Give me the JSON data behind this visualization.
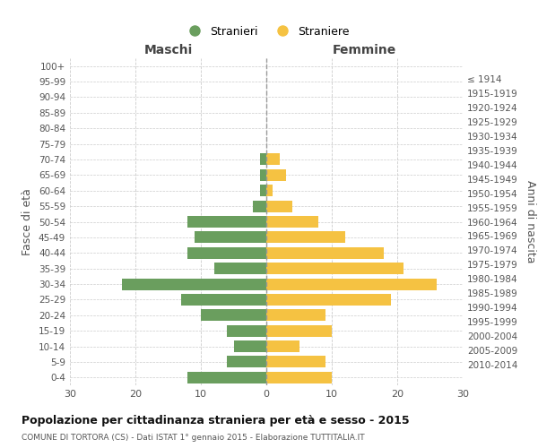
{
  "age_groups": [
    "100+",
    "95-99",
    "90-94",
    "85-89",
    "80-84",
    "75-79",
    "70-74",
    "65-69",
    "60-64",
    "55-59",
    "50-54",
    "45-49",
    "40-44",
    "35-39",
    "30-34",
    "25-29",
    "20-24",
    "15-19",
    "10-14",
    "5-9",
    "0-4"
  ],
  "birth_years": [
    "≤ 1914",
    "1915-1919",
    "1920-1924",
    "1925-1929",
    "1930-1934",
    "1935-1939",
    "1940-1944",
    "1945-1949",
    "1950-1954",
    "1955-1959",
    "1960-1964",
    "1965-1969",
    "1970-1974",
    "1975-1979",
    "1980-1984",
    "1985-1989",
    "1990-1994",
    "1995-1999",
    "2000-2004",
    "2005-2009",
    "2010-2014"
  ],
  "maschi": [
    0,
    0,
    0,
    0,
    0,
    0,
    1,
    1,
    1,
    2,
    12,
    11,
    12,
    8,
    22,
    13,
    10,
    6,
    5,
    6,
    12
  ],
  "femmine": [
    0,
    0,
    0,
    0,
    0,
    0,
    2,
    3,
    1,
    4,
    8,
    12,
    18,
    21,
    26,
    19,
    9,
    10,
    5,
    9,
    10
  ],
  "color_maschi": "#6a9e5e",
  "color_femmine": "#f5c242",
  "label_maschi": "Stranieri",
  "label_femmine": "Straniere",
  "title_maschi": "Maschi",
  "title_femmine": "Femmine",
  "ylabel_left": "Fasce di età",
  "ylabel_right": "Anni di nascita",
  "xlim": 30,
  "title": "Popolazione per cittadinanza straniera per età e sesso - 2015",
  "subtitle": "COMUNE DI TORTORA (CS) - Dati ISTAT 1° gennaio 2015 - Elaborazione TUTTITALIA.IT",
  "background_color": "#ffffff",
  "grid_color": "#cccccc",
  "center_line_color": "#999999"
}
